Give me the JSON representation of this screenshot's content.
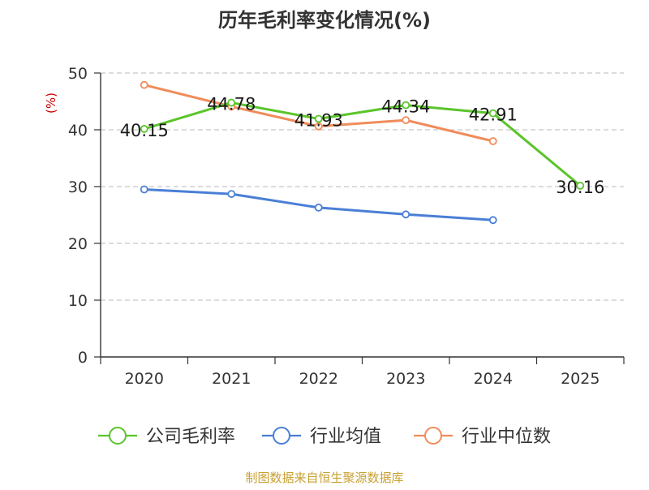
{
  "chart_data": {
    "type": "line",
    "title": "历年毛利率变化情况(%)",
    "ylabel": "(%)",
    "xlabel": "",
    "categories": [
      "2020",
      "2021",
      "2022",
      "2023",
      "2024",
      "2025"
    ],
    "ylim": [
      0,
      50
    ],
    "yticks": [
      0,
      10,
      20,
      30,
      40,
      50
    ],
    "grid": "horizontal-dashed",
    "legend_position": "bottom",
    "series": [
      {
        "name": "公司毛利率",
        "color": "#5ac52a",
        "values": [
          40.15,
          44.78,
          41.93,
          44.34,
          42.91,
          30.16
        ],
        "labels": [
          "40.15",
          "44.78",
          "41.93",
          "44.34",
          "42.91",
          "30.16"
        ]
      },
      {
        "name": "行业均值",
        "color": "#4a7fd6",
        "values": [
          29.5,
          28.7,
          26.3,
          25.1,
          24.1,
          null
        ]
      },
      {
        "name": "行业中位数",
        "color": "#f08c5a",
        "values": [
          47.9,
          44.1,
          40.6,
          41.7,
          38.0,
          null
        ]
      }
    ],
    "source": "制图数据来自恒生聚源数据库"
  }
}
